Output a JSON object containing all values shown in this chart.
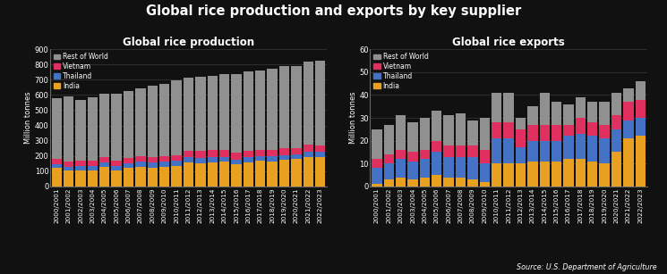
{
  "title": "Global rice production and exports by key supplier",
  "subtitle_left": "Global rice production",
  "subtitle_right": "Global rice exports",
  "source": "Source: U.S. Department of Agriculture",
  "ylabel_left": "Million tonnes",
  "ylabel_right": "Million tonnes",
  "years": [
    "2000/2001",
    "2001/2002",
    "2002/2003",
    "2003/2004",
    "2004/2005",
    "2005/2006",
    "2006/2007",
    "2007/2008",
    "2008/2009",
    "2009/2010",
    "2010/2011",
    "2011/2012",
    "2012/2013",
    "2013/2014",
    "2014/2015",
    "2015/2016",
    "2016/2017",
    "2017/2018",
    "2018/2019",
    "2019/2020",
    "2020/2021",
    "2021/2022",
    "2022/2023"
  ],
  "prod_india": [
    120,
    103,
    105,
    105,
    130,
    107,
    121,
    128,
    123,
    128,
    131,
    155,
    152,
    158,
    161,
    148,
    158,
    166,
    164,
    177,
    178,
    195,
    195
  ],
  "prod_thailand": [
    26,
    27,
    27,
    26,
    28,
    28,
    30,
    32,
    32,
    32,
    35,
    36,
    37,
    36,
    33,
    27,
    33,
    32,
    33,
    28,
    30,
    33,
    33
  ],
  "prod_vietnam": [
    32,
    31,
    35,
    35,
    36,
    36,
    36,
    36,
    39,
    40,
    40,
    42,
    44,
    44,
    45,
    45,
    43,
    43,
    44,
    43,
    43,
    44,
    43
  ],
  "prod_row": [
    400,
    430,
    400,
    420,
    415,
    435,
    440,
    445,
    470,
    475,
    490,
    480,
    485,
    490,
    500,
    515,
    520,
    520,
    530,
    540,
    540,
    548,
    555
  ],
  "exp_india": [
    1,
    3,
    4,
    3,
    4,
    5,
    4,
    4,
    3,
    2,
    10,
    10,
    10,
    11,
    11,
    11,
    12,
    12,
    11,
    10,
    15,
    21,
    22
  ],
  "exp_thailand": [
    7,
    7,
    8,
    8,
    8,
    10,
    9,
    9,
    10,
    8,
    11,
    11,
    7,
    9,
    9,
    9,
    10,
    11,
    11,
    11,
    10,
    8,
    8
  ],
  "exp_vietnam": [
    4,
    4,
    4,
    4,
    4,
    5,
    5,
    5,
    5,
    6,
    7,
    7,
    8,
    7,
    7,
    7,
    5,
    7,
    6,
    6,
    6,
    8,
    8
  ],
  "exp_row": [
    13,
    13,
    15,
    13,
    14,
    13,
    13,
    14,
    11,
    14,
    13,
    13,
    5,
    8,
    14,
    10,
    9,
    9,
    9,
    10,
    10,
    6,
    8
  ],
  "color_india": "#E8A020",
  "color_thailand": "#4472C4",
  "color_vietnam": "#E03060",
  "color_row": "#909090",
  "bg_color": "#111111",
  "text_color": "#ffffff",
  "ylim_prod": [
    0,
    900
  ],
  "ylim_exp": [
    0,
    60
  ],
  "yticks_prod": [
    0,
    100,
    200,
    300,
    400,
    500,
    600,
    700,
    800,
    900
  ],
  "yticks_exp": [
    0,
    10,
    20,
    30,
    40,
    50,
    60
  ]
}
